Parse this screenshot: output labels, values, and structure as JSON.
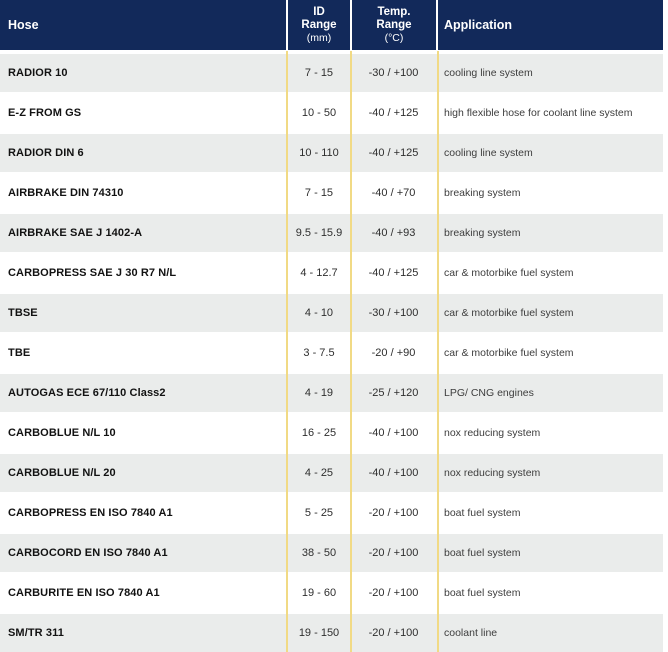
{
  "header": {
    "hose": "Hose",
    "id_line1": "ID",
    "id_line2": "Range",
    "id_unit": "(mm)",
    "temp_line1": "Temp.",
    "temp_line2": "Range",
    "temp_unit": "(°C)",
    "application": "Application"
  },
  "rows": [
    {
      "hose": "RADIOR 10",
      "id_range": "7 - 15",
      "temp_range": "-30 / +100",
      "application": "cooling line system"
    },
    {
      "hose": "E-Z FROM GS",
      "id_range": "10 - 50",
      "temp_range": "-40 / +125",
      "application": "high flexible hose for coolant line system"
    },
    {
      "hose": "RADIOR DIN 6",
      "id_range": "10 - 110",
      "temp_range": "-40 / +125",
      "application": "cooling line system"
    },
    {
      "hose": "AIRBRAKE DIN 74310",
      "id_range": "7 - 15",
      "temp_range": "-40 / +70",
      "application": "breaking system"
    },
    {
      "hose": "AIRBRAKE SAE J 1402-A",
      "id_range": "9.5 - 15.9",
      "temp_range": "-40 / +93",
      "application": "breaking system"
    },
    {
      "hose": "CARBOPRESS SAE J 30 R7 N/L",
      "id_range": "4 - 12.7",
      "temp_range": "-40 / +125",
      "application": "car & motorbike fuel system"
    },
    {
      "hose": "TBSE",
      "id_range": "4 - 10",
      "temp_range": "-30 / +100",
      "application": "car & motorbike fuel system"
    },
    {
      "hose": "TBE",
      "id_range": "3 - 7.5",
      "temp_range": "-20 / +90",
      "application": "car & motorbike fuel system"
    },
    {
      "hose": "AUTOGAS ECE 67/110 Class2",
      "id_range": "4 - 19",
      "temp_range": "-25 / +120",
      "application": "LPG/ CNG engines"
    },
    {
      "hose": "CARBOBLUE N/L 10",
      "id_range": "16 - 25",
      "temp_range": "-40 / +100",
      "application": "nox reducing system"
    },
    {
      "hose": "CARBOBLUE N/L 20",
      "id_range": "4 - 25",
      "temp_range": "-40 / +100",
      "application": "nox reducing system"
    },
    {
      "hose": "CARBOPRESS EN ISO 7840 A1",
      "id_range": "5 - 25",
      "temp_range": "-20 / +100",
      "application": "boat fuel system"
    },
    {
      "hose": "CARBOCORD EN ISO 7840 A1",
      "id_range": "38 - 50",
      "temp_range": "-20 / +100",
      "application": "boat fuel system"
    },
    {
      "hose": "CARBURITE EN ISO 7840 A1",
      "id_range": "19 - 60",
      "temp_range": "-20 / +100",
      "application": "boat fuel system"
    },
    {
      "hose": "SM/TR 311",
      "id_range": "19 - 150",
      "temp_range": "-20 / +100",
      "application": "coolant line"
    }
  ],
  "colors": {
    "header_bg": "#12295a",
    "header_text": "#ffffff",
    "row_alt_bg": "#eaeceb",
    "row_bg": "#ffffff",
    "divider_yellow": "#f1da85",
    "hose_text": "#121212",
    "value_text": "#2e2e2e",
    "application_text": "#3d3d3d"
  }
}
